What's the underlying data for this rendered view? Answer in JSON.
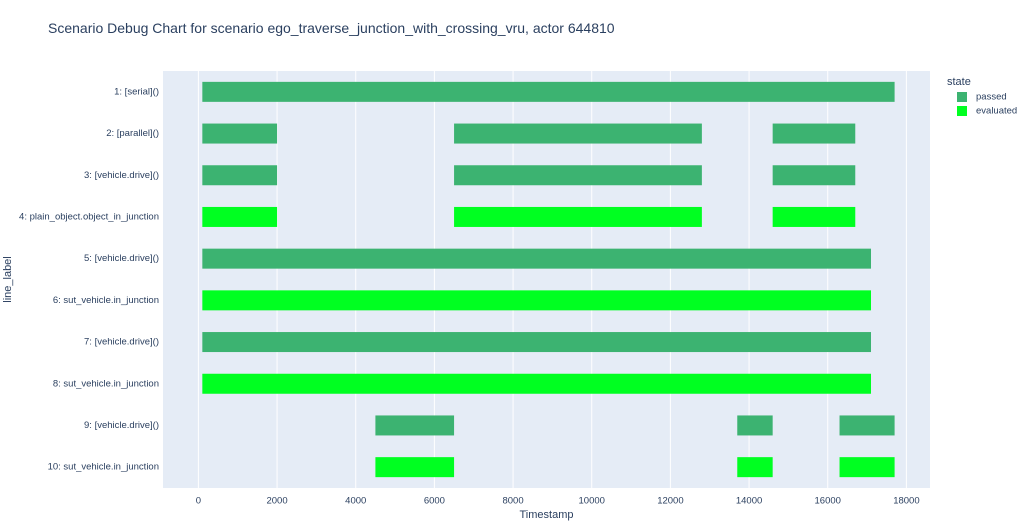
{
  "chart_data": {
    "type": "bar",
    "orientation": "horizontal-timeline",
    "title": "Scenario Debug Chart for scenario ego_traverse_junction_with_crossing_vru, actor 644810",
    "xlabel": "Timestamp",
    "ylabel": "line_label",
    "xlim": [
      -900,
      18600
    ],
    "xticks": [
      0,
      2000,
      4000,
      6000,
      8000,
      10000,
      12000,
      14000,
      16000,
      18000
    ],
    "grid": true,
    "legend": {
      "title": "state",
      "placement": "right",
      "entries": [
        {
          "label": "passed",
          "color": "#3cb371"
        },
        {
          "label": "evaluated",
          "color": "#00ff21"
        }
      ]
    },
    "categories": [
      "1: [serial]()",
      "2: [parallel]()",
      "3: [vehicle.drive]()",
      "4: plain_object.object_in_junction",
      "5: [vehicle.drive]()",
      "6: sut_vehicle.in_junction",
      "7: [vehicle.drive]()",
      "8: sut_vehicle.in_junction",
      "9: [vehicle.drive]()",
      "10: sut_vehicle.in_junction"
    ],
    "bars": [
      {
        "row": 0,
        "start": 100,
        "end": 17700,
        "state": "passed"
      },
      {
        "row": 1,
        "start": 100,
        "end": 2000,
        "state": "passed"
      },
      {
        "row": 1,
        "start": 6500,
        "end": 12800,
        "state": "passed"
      },
      {
        "row": 1,
        "start": 14600,
        "end": 16700,
        "state": "passed"
      },
      {
        "row": 2,
        "start": 100,
        "end": 2000,
        "state": "passed"
      },
      {
        "row": 2,
        "start": 6500,
        "end": 12800,
        "state": "passed"
      },
      {
        "row": 2,
        "start": 14600,
        "end": 16700,
        "state": "passed"
      },
      {
        "row": 3,
        "start": 100,
        "end": 2000,
        "state": "evaluated"
      },
      {
        "row": 3,
        "start": 6500,
        "end": 12800,
        "state": "evaluated"
      },
      {
        "row": 3,
        "start": 14600,
        "end": 16700,
        "state": "evaluated"
      },
      {
        "row": 4,
        "start": 100,
        "end": 17100,
        "state": "passed"
      },
      {
        "row": 5,
        "start": 100,
        "end": 17100,
        "state": "evaluated"
      },
      {
        "row": 6,
        "start": 100,
        "end": 17100,
        "state": "passed"
      },
      {
        "row": 7,
        "start": 100,
        "end": 17100,
        "state": "evaluated"
      },
      {
        "row": 8,
        "start": 4500,
        "end": 6500,
        "state": "passed"
      },
      {
        "row": 8,
        "start": 13700,
        "end": 14600,
        "state": "passed"
      },
      {
        "row": 8,
        "start": 16300,
        "end": 17700,
        "state": "passed"
      },
      {
        "row": 9,
        "start": 4500,
        "end": 6500,
        "state": "evaluated"
      },
      {
        "row": 9,
        "start": 13700,
        "end": 14600,
        "state": "evaluated"
      },
      {
        "row": 9,
        "start": 16300,
        "end": 17700,
        "state": "evaluated"
      }
    ],
    "colors": {
      "plot_background": "#e5ecf6",
      "grid": "#ffffff",
      "text": "#2a3f5f"
    }
  }
}
